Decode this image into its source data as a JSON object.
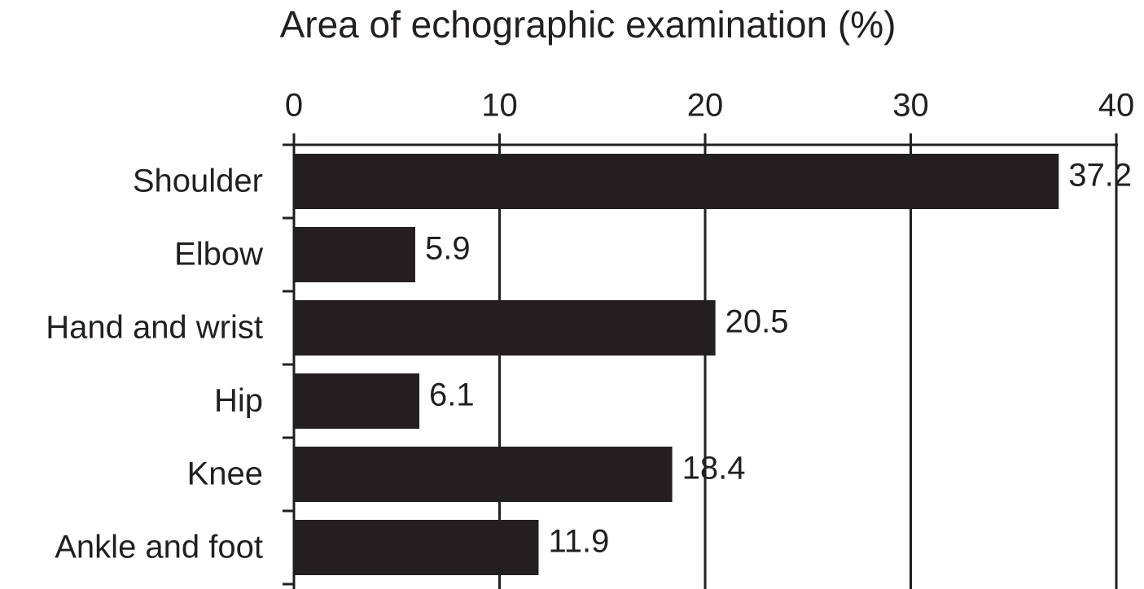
{
  "chart_data": {
    "type": "bar",
    "orientation": "horizontal",
    "title": "Area of echographic examination (%)",
    "categories": [
      "Shoulder",
      "Elbow",
      "Hand and wrist",
      "Hip",
      "Knee",
      "Ankle and foot"
    ],
    "values": [
      37.2,
      5.9,
      20.5,
      6.1,
      18.4,
      11.9
    ],
    "color": "#231f20",
    "xlim": [
      0,
      40
    ],
    "xticks": [
      0,
      10,
      20,
      30,
      40
    ],
    "grid": true
  }
}
